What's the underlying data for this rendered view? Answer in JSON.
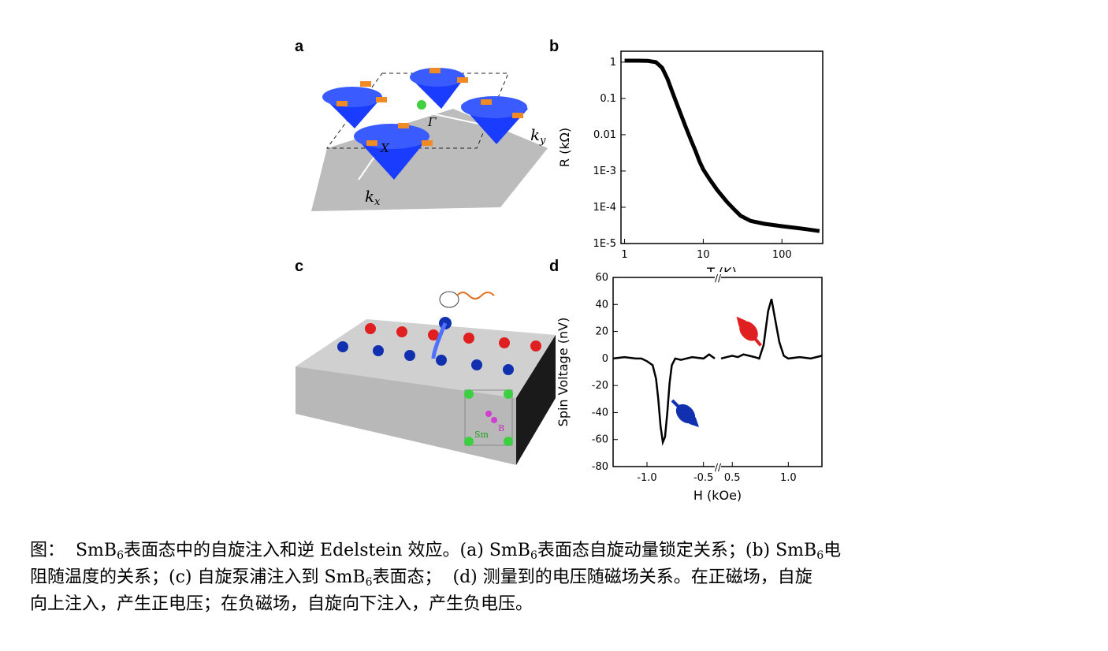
{
  "panels": {
    "a": {
      "label": "a",
      "kx": "k",
      "kx_sub": "x",
      "ky": "k",
      "ky_sub": "y",
      "gamma": "Γ",
      "xbar": "X"
    },
    "b": {
      "label": "b"
    },
    "c": {
      "label": "c",
      "sm": "Sm",
      "b": "B"
    },
    "d": {
      "label": "d"
    }
  },
  "chart_data": [
    {
      "type": "line",
      "panel": "b",
      "xlabel": "T (K)",
      "ylabel": "R (kΩ)",
      "xscale": "log",
      "yscale": "log",
      "xlim": [
        0.9,
        330
      ],
      "ylim": [
        1e-05,
        2
      ],
      "xticks": [
        "1",
        "10",
        "100"
      ],
      "yticks": [
        "1",
        "0.1",
        "0.01",
        "1E-3",
        "1E-4",
        "1E-5"
      ],
      "series": [
        {
          "x": [
            1,
            1.5,
            2,
            2.5,
            3,
            3.5,
            4,
            5,
            6,
            7,
            8,
            9,
            10,
            12,
            15,
            20,
            25,
            30,
            40,
            60,
            100,
            150,
            200,
            300
          ],
          "y": [
            1.1,
            1.1,
            1.08,
            1.0,
            0.7,
            0.35,
            0.16,
            0.045,
            0.016,
            0.007,
            0.0035,
            0.0018,
            0.0011,
            0.0006,
            0.0003,
            0.00014,
            8.5e-05,
            5.8e-05,
            4.2e-05,
            3.5e-05,
            3e-05,
            2.7e-05,
            2.5e-05,
            2.2e-05
          ]
        }
      ]
    },
    {
      "type": "line",
      "panel": "d",
      "xlabel": "H (kOe)",
      "ylabel": "Spin Voltage (nV)",
      "ylim": [
        -80,
        60
      ],
      "yticks": [
        "60",
        "40",
        "20",
        "0",
        "-20",
        "-40",
        "-60",
        "-80"
      ],
      "xticks_left": [
        "-1.0",
        "-0.5"
      ],
      "xticks_right": [
        "0.5",
        "1.0"
      ],
      "axis_break": "//",
      "series": [
        {
          "segment": "negative-field",
          "x": [
            -1.3,
            -1.2,
            -1.1,
            -1.05,
            -1.0,
            -0.95,
            -0.92,
            -0.9,
            -0.88,
            -0.86,
            -0.84,
            -0.82,
            -0.8,
            -0.78,
            -0.75,
            -0.7,
            -0.6,
            -0.5,
            -0.45,
            -0.4
          ],
          "y": [
            0,
            1,
            0,
            0,
            -2,
            -5,
            -15,
            -30,
            -50,
            -62,
            -58,
            -40,
            -18,
            -5,
            0,
            -1,
            1,
            0,
            3,
            0
          ]
        },
        {
          "segment": "positive-field",
          "x": [
            0.4,
            0.45,
            0.5,
            0.55,
            0.6,
            0.65,
            0.7,
            0.74,
            0.78,
            0.82,
            0.85,
            0.88,
            0.92,
            0.96,
            1.0,
            1.1,
            1.2,
            1.3
          ],
          "y": [
            0,
            1,
            2,
            1,
            3,
            2,
            1,
            0,
            10,
            35,
            44,
            30,
            12,
            2,
            0,
            1,
            0,
            2
          ]
        }
      ]
    }
  ],
  "caption": {
    "lines": [
      [
        "图：  SmB",
        "6",
        "表面态中的自旋注入和逆 Edelstein 效应。(a) SmB",
        "6",
        "表面态自旋动量锁定关系；(b) SmB",
        "6",
        "电"
      ],
      [
        "阻随温度的关系；(c) 自旋泵浦注入到 SmB",
        "6",
        "表面态；  (d) 测量到的电压随磁场关系。在正磁场，自旋"
      ],
      [
        "向上注入，产生正电压；在负磁场，自旋向下注入，产生负电压。"
      ]
    ]
  },
  "colors": {
    "cone": "#1a3cff",
    "arrow": "#f08a24",
    "spin_up": "#e02020",
    "spin_down": "#1030b0",
    "atom_sm": "#3ad040",
    "atom_b": "#d040d0",
    "curve": "#000000"
  }
}
